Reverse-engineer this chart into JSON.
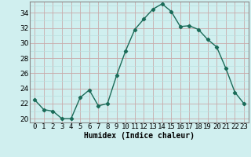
{
  "x": [
    0,
    1,
    2,
    3,
    4,
    5,
    6,
    7,
    8,
    9,
    10,
    11,
    12,
    13,
    14,
    15,
    16,
    17,
    18,
    19,
    20,
    21,
    22,
    23
  ],
  "y": [
    22.5,
    21.2,
    21.0,
    20.0,
    20.0,
    22.8,
    23.8,
    21.7,
    22.0,
    25.7,
    29.0,
    31.8,
    33.2,
    34.5,
    35.2,
    34.2,
    32.2,
    32.3,
    31.8,
    30.5,
    29.5,
    26.7,
    23.5,
    22.0
  ],
  "line_color": "#1a6b58",
  "marker": "D",
  "marker_size": 2.2,
  "bg_color": "#d0efef",
  "minor_grid_color": "#b8dede",
  "major_grid_color": "#c8aaaa",
  "xlabel": "Humidex (Indice chaleur)",
  "xlim": [
    -0.5,
    23.5
  ],
  "ylim": [
    19.5,
    35.5
  ],
  "yticks": [
    20,
    22,
    24,
    26,
    28,
    30,
    32,
    34
  ],
  "xtick_labels": [
    "0",
    "1",
    "2",
    "3",
    "4",
    "5",
    "6",
    "7",
    "8",
    "9",
    "10",
    "11",
    "12",
    "13",
    "14",
    "15",
    "16",
    "17",
    "18",
    "19",
    "20",
    "21",
    "22",
    "23"
  ],
  "xlabel_fontsize": 7,
  "tick_fontsize": 6.5,
  "line_width": 1.0,
  "spine_color": "#888888"
}
